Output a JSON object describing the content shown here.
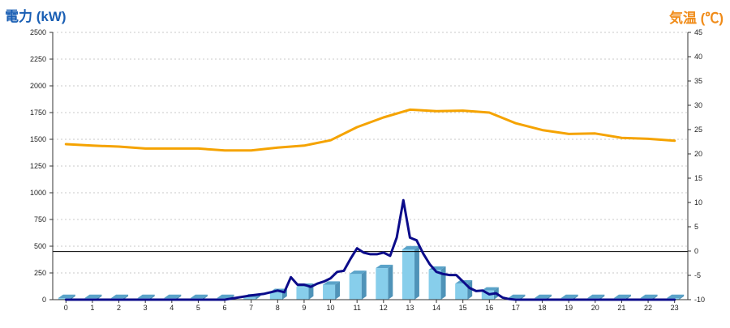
{
  "chart_data": {
    "type": "bar+line",
    "title": "",
    "left_axis_label": "電力 (kW)",
    "right_axis_label": "気温 (℃)",
    "x_ticks": [
      "0",
      "1",
      "2",
      "3",
      "4",
      "5",
      "6",
      "7",
      "8",
      "9",
      "10",
      "11",
      "12",
      "13",
      "14",
      "15",
      "16",
      "17",
      "18",
      "19",
      "20",
      "21",
      "22",
      "23"
    ],
    "left_ticks": [
      "0",
      "250",
      "500",
      "750",
      "1000",
      "1250",
      "1500",
      "1750",
      "2000",
      "2250",
      "2500"
    ],
    "right_ticks": [
      "-10",
      "-5",
      "0",
      "5",
      "10",
      "15",
      "20",
      "25",
      "30",
      "35",
      "40",
      "45"
    ],
    "ylim_left": [
      0,
      2500
    ],
    "ylim_right": [
      -10,
      45
    ],
    "grid": true,
    "reference_line_kw": 450,
    "bars": {
      "name": "電力",
      "color": "#87ceeb",
      "values": [
        5,
        5,
        5,
        5,
        5,
        5,
        5,
        20,
        70,
        120,
        140,
        240,
        295,
        470,
        280,
        150,
        85,
        10,
        5,
        5,
        5,
        5,
        5,
        5
      ]
    },
    "power_line": {
      "color": "#0b0b8a",
      "x": [
        0,
        0.5,
        1,
        1.5,
        2,
        2.5,
        3,
        3.5,
        4,
        4.5,
        5,
        5.5,
        6,
        6.5,
        7,
        7.5,
        8,
        8.25,
        8.5,
        8.75,
        9,
        9.25,
        9.5,
        9.75,
        10,
        10.25,
        10.5,
        10.75,
        11,
        11.25,
        11.5,
        11.75,
        12,
        12.25,
        12.5,
        12.75,
        13,
        13.25,
        13.5,
        13.75,
        14,
        14.25,
        14.5,
        14.75,
        15,
        15.25,
        15.5,
        15.75,
        16,
        16.25,
        16.5,
        16.75,
        17,
        17.5,
        18,
        18.5,
        19,
        19.5,
        20,
        20.5,
        21,
        21.5,
        22,
        22.5,
        23
      ],
      "values": [
        0,
        0,
        0,
        0,
        0,
        0,
        0,
        0,
        0,
        0,
        0,
        0,
        0,
        20,
        40,
        55,
        85,
        70,
        210,
        140,
        140,
        120,
        150,
        170,
        200,
        260,
        270,
        380,
        480,
        440,
        425,
        425,
        440,
        410,
        580,
        930,
        580,
        555,
        430,
        330,
        260,
        240,
        230,
        230,
        170,
        110,
        80,
        85,
        50,
        60,
        20,
        5,
        0,
        0,
        0,
        0,
        0,
        0,
        0,
        0,
        0,
        0,
        0,
        0,
        0
      ]
    },
    "temperature_line": {
      "color": "#f5a300",
      "x": [
        0,
        1,
        2,
        3,
        4,
        5,
        6,
        7,
        8,
        9,
        10,
        11,
        12,
        13,
        14,
        15,
        16,
        17,
        18,
        19,
        20,
        21,
        22,
        23
      ],
      "values": [
        22,
        21.7,
        21.5,
        21.1,
        21.1,
        21.1,
        20.7,
        20.7,
        21.3,
        21.7,
        22.8,
        25.5,
        27.5,
        29.1,
        28.8,
        28.9,
        28.5,
        26.3,
        24.9,
        24.1,
        24.2,
        23.3,
        23.1,
        22.7
      ]
    }
  }
}
